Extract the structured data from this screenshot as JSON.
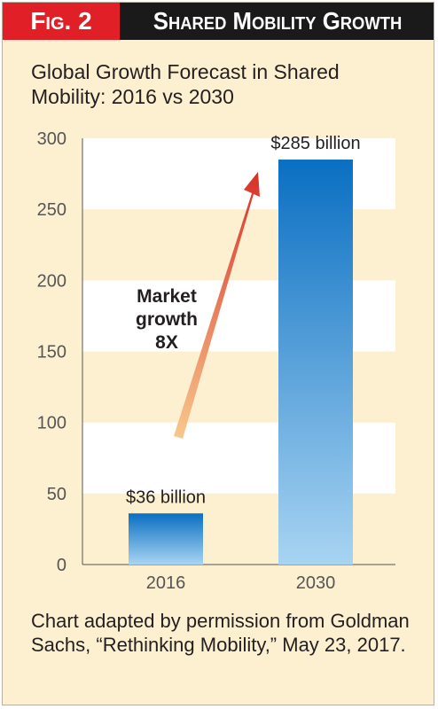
{
  "header": {
    "fig_label": "Fig. 2",
    "title": "Shared Mobility Growth"
  },
  "chart_data": {
    "type": "bar",
    "title": "Global Growth Forecast in Shared Mobility: 2016 vs 2030",
    "categories": [
      "2016",
      "2030"
    ],
    "values": [
      36,
      285
    ],
    "data_labels": [
      "$36 billion",
      "$285 billion"
    ],
    "yticks": [
      0,
      50,
      100,
      150,
      200,
      250,
      300
    ],
    "ylim": [
      0,
      300
    ],
    "xlabel": "",
    "ylabel": "",
    "annotation": [
      "Market",
      "growth",
      "8X"
    ],
    "colors": {
      "bar_top": "#0a6fc2",
      "bar_bottom": "#a8d4f2",
      "band_white": "#ffffff",
      "band_cream": "#fdf0d0",
      "arrow_start": "#f7c68a",
      "arrow_end": "#d7322a"
    }
  },
  "caption": "Chart adapted by permission from Goldman Sachs, “Rethinking Mobility,” May 23, 2017."
}
